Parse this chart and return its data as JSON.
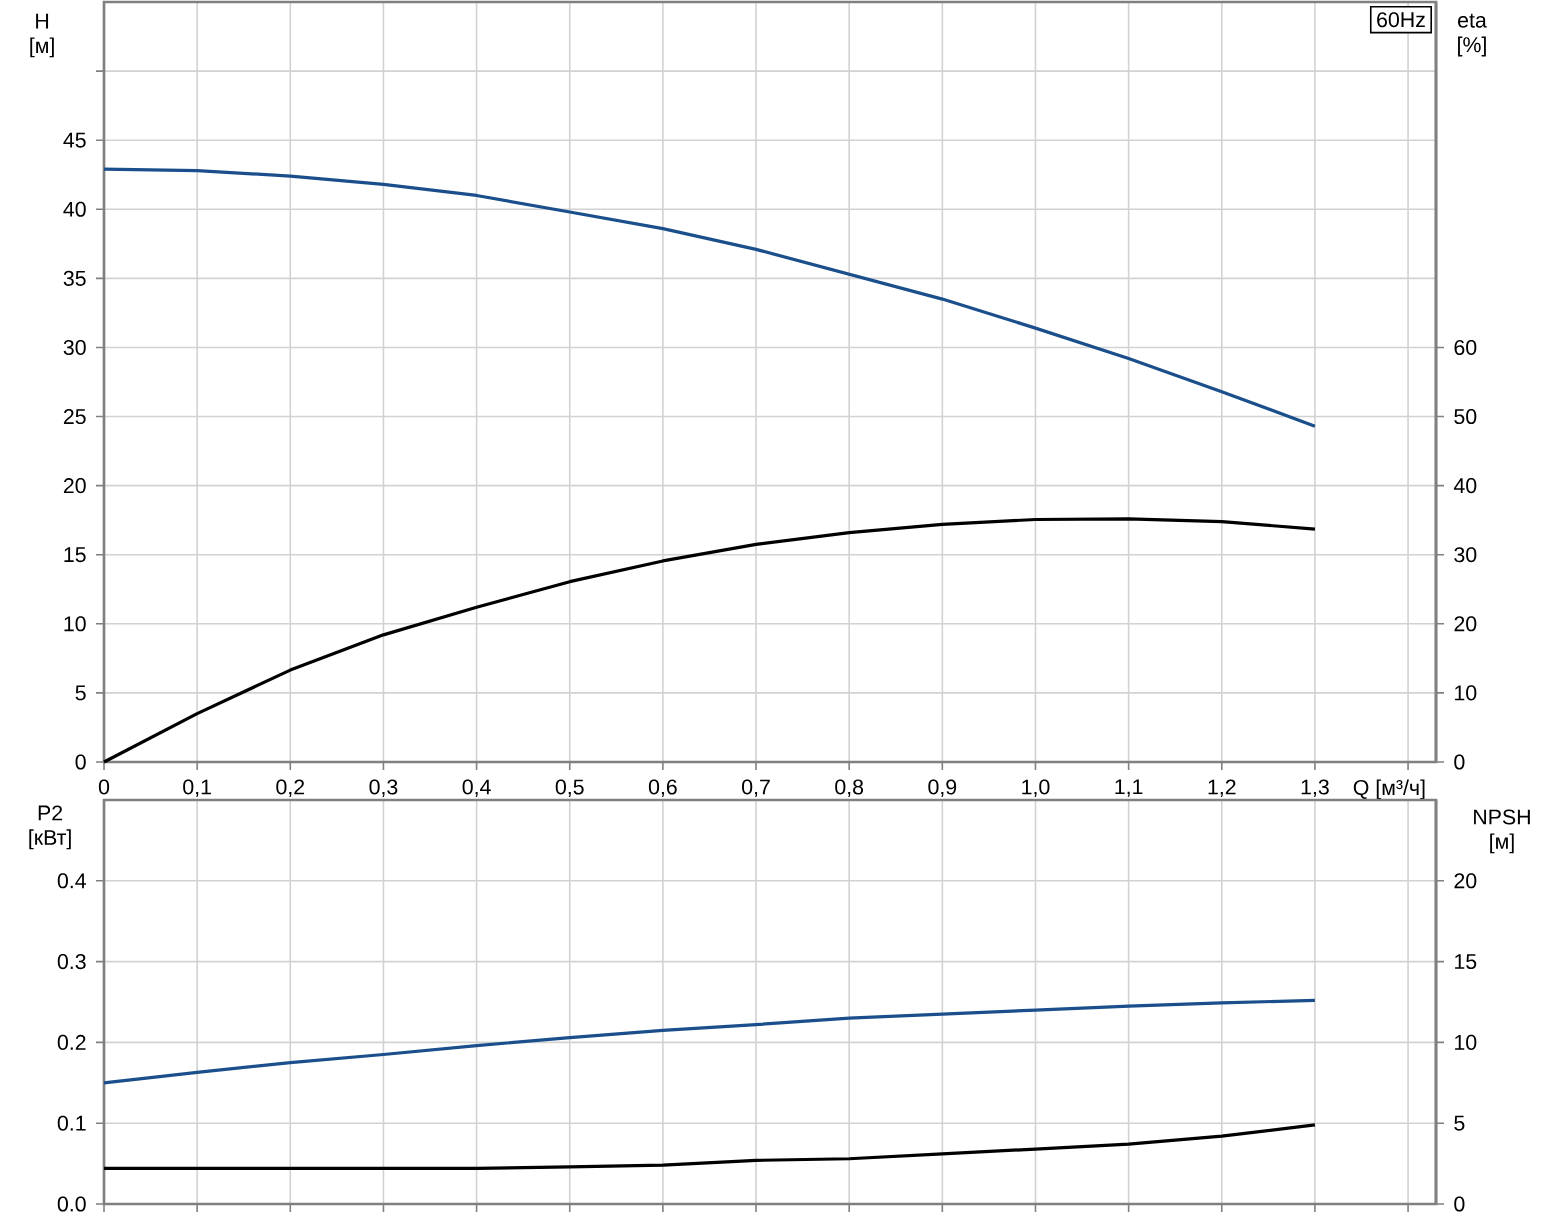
{
  "chart_data": [
    {
      "type": "line",
      "xlabel": "Q [м³/ч]",
      "ylabel": "H [м]",
      "y2label": "eta [%]",
      "annotations": [
        "60Hz"
      ],
      "xlim": [
        0,
        1.43
      ],
      "xticks": [
        0,
        {
          "value": 0.1,
          "label": "0,1"
        },
        {
          "value": 0.2,
          "label": "0,2"
        },
        {
          "value": 0.3,
          "label": "0,3"
        },
        {
          "value": 0.4,
          "label": "0,4"
        },
        {
          "value": 0.5,
          "label": "0,5"
        },
        {
          "value": 0.6,
          "label": "0,6"
        },
        {
          "value": 0.7,
          "label": "0,7"
        },
        {
          "value": 0.8,
          "label": "0,8"
        },
        {
          "value": 0.9,
          "label": "0,9"
        },
        {
          "value": 1.0,
          "label": "1,0"
        },
        {
          "value": 1.1,
          "label": "1,1"
        },
        {
          "value": 1.2,
          "label": "1,2"
        },
        {
          "value": 1.3,
          "label": "1,3"
        },
        {
          "value": 1.4,
          "label": null
        }
      ],
      "ylim": [
        0,
        55
      ],
      "yticks": [
        0,
        5,
        10,
        15,
        20,
        25,
        30,
        35,
        40,
        45,
        {
          "value": 50,
          "label": null
        }
      ],
      "y2lim": [
        0,
        110
      ],
      "y2ticks": [
        0,
        10,
        20,
        30,
        40,
        50,
        60
      ],
      "grid": true,
      "x": [
        0,
        0.1,
        0.2,
        0.3,
        0.4,
        0.5,
        0.6,
        0.7,
        0.8,
        0.9,
        1.0,
        1.1,
        1.2,
        1.3
      ],
      "series": [
        {
          "color": "#1b4f8c",
          "values": [
            42.9,
            42.8,
            42.4,
            41.8,
            41.0,
            39.8,
            38.6,
            37.1,
            35.3,
            33.5,
            31.4,
            29.2,
            26.8,
            24.3
          ]
        },
        {
          "color": "#000000",
          "axis": "y2",
          "values": [
            0,
            7.0,
            13.3,
            18.4,
            22.4,
            26.1,
            29.1,
            31.5,
            33.2,
            34.4,
            35.1,
            35.2,
            34.8,
            33.7
          ]
        }
      ]
    },
    {
      "type": "line",
      "ylabel": "P2 [кВт]",
      "y2label": "NPSH [м]",
      "xlim": [
        0,
        1.43
      ],
      "xticks": [
        0,
        0.1,
        0.2,
        0.3,
        0.4,
        0.5,
        0.6,
        0.7,
        0.8,
        0.9,
        1.0,
        1.1,
        1.2,
        1.3,
        1.4
      ],
      "tick_labels": "y",
      "ylim": [
        0,
        0.5
      ],
      "yticks": [
        {
          "value": 0,
          "label": "0.0"
        },
        0.1,
        0.2,
        0.3,
        0.4
      ],
      "y2lim": [
        0,
        25
      ],
      "y2ticks": [
        0,
        5,
        10,
        15,
        20
      ],
      "grid": true,
      "x": [
        0,
        0.1,
        0.2,
        0.3,
        0.4,
        0.5,
        0.6,
        0.7,
        0.8,
        0.9,
        1.0,
        1.1,
        1.2,
        1.3
      ],
      "series": [
        {
          "color": "#1b4f8c",
          "values": [
            0.15,
            0.163,
            0.175,
            0.185,
            0.196,
            0.206,
            0.215,
            0.222,
            0.23,
            0.235,
            0.24,
            0.245,
            0.249,
            0.252
          ]
        },
        {
          "color": "#000000",
          "axis": "y2",
          "values": [
            2.2,
            2.2,
            2.2,
            2.2,
            2.2,
            2.3,
            2.4,
            2.7,
            2.8,
            3.1,
            3.4,
            3.7,
            4.2,
            4.9
          ]
        }
      ]
    }
  ]
}
